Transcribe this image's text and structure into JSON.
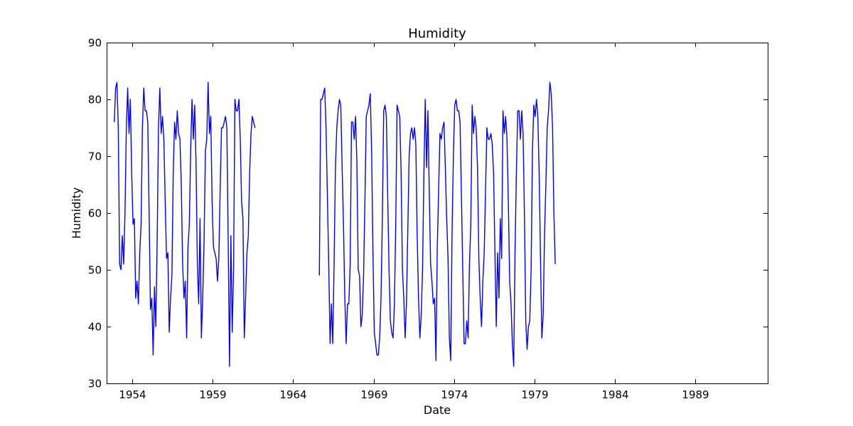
{
  "chart_data": {
    "type": "line",
    "title": "Humidity",
    "xlabel": "Date",
    "ylabel": "Humidity",
    "xlim": [
      1952.4,
      1993.5
    ],
    "ylim": [
      30,
      90
    ],
    "x_ticks": [
      1954,
      1959,
      1964,
      1969,
      1974,
      1979,
      1984,
      1989
    ],
    "x_tick_labels": [
      "1954",
      "1959",
      "1964",
      "1969",
      "1974",
      "1979",
      "1984",
      "1989"
    ],
    "y_ticks": [
      30,
      40,
      50,
      60,
      70,
      80,
      90
    ],
    "y_tick_labels": [
      "30",
      "40",
      "50",
      "60",
      "70",
      "80",
      "90"
    ],
    "grid": false,
    "series": [
      {
        "color": "#0000ff",
        "segments": [
          {
            "start": 1952.875,
            "step": 0.08333,
            "values": [
              76,
              82,
              83,
              75,
              51,
              50,
              56,
              51,
              60,
              75,
              82,
              74,
              80,
              67,
              58,
              59,
              45,
              48,
              44,
              53,
              58,
              75,
              82,
              78,
              78,
              76,
              60,
              43,
              45,
              35,
              47,
              40,
              55,
              75,
              82,
              74,
              77,
              73,
              62,
              52,
              53,
              39,
              45,
              49,
              67,
              76,
              73,
              78,
              74,
              73,
              65,
              51,
              45,
              48,
              38,
              54,
              58,
              71,
              80,
              73,
              79,
              69,
              51,
              44,
              59,
              38,
              45,
              55,
              71,
              73,
              83,
              74,
              77,
              62,
              54,
              53,
              52,
              48,
              52,
              64,
              75,
              75,
              76,
              77,
              75,
              55,
              33,
              56,
              39,
              50,
              80,
              78,
              78,
              80,
              73,
              62,
              59,
              38,
              45,
              53,
              56,
              67,
              74,
              77,
              76,
              75
            ]
          },
          {
            "start": 1965.625,
            "step": 0.08333,
            "values": [
              49,
              80,
              80,
              81,
              82,
              75,
              63,
              51,
              37,
              44,
              37,
              51,
              68,
              75,
              78,
              80,
              79,
              68,
              58,
              45,
              37,
              44,
              44,
              51,
              76,
              76,
              73,
              77,
              69,
              50,
              49,
              40,
              42,
              49,
              62,
              77,
              78,
              79,
              81,
              71,
              53,
              39,
              37,
              35,
              35,
              38,
              45,
              59,
              78,
              79,
              77,
              63,
              50,
              41,
              39,
              38,
              44,
              58,
              79,
              78,
              77,
              67,
              50,
              45,
              38,
              44,
              57,
              70,
              74,
              75,
              73,
              75,
              72,
              56,
              45,
              38,
              42,
              50,
              67,
              80,
              68,
              78,
              64,
              51,
              48,
              44,
              45,
              34,
              54,
              64,
              74,
              73,
              75,
              76,
              68,
              59,
              52,
              38,
              34,
              56,
              70,
              79,
              80,
              78,
              78,
              76,
              63,
              50,
              37,
              37,
              41,
              38,
              51,
              58,
              79,
              74,
              77,
              75,
              68,
              52,
              45,
              40,
              48,
              53,
              64,
              75,
              73,
              73,
              74,
              72,
              67,
              53,
              40,
              53,
              45,
              59,
              52,
              78,
              74,
              77,
              73,
              62,
              48,
              44,
              37,
              33,
              53,
              67,
              78,
              78,
              73,
              78,
              74,
              60,
              41,
              36,
              40,
              41,
              50,
              71,
              79,
              77,
              80,
              77,
              67,
              52,
              38,
              42,
              56,
              65,
              75,
              78,
              83,
              81,
              75,
              60,
              51
            ]
          }
        ]
      }
    ]
  }
}
